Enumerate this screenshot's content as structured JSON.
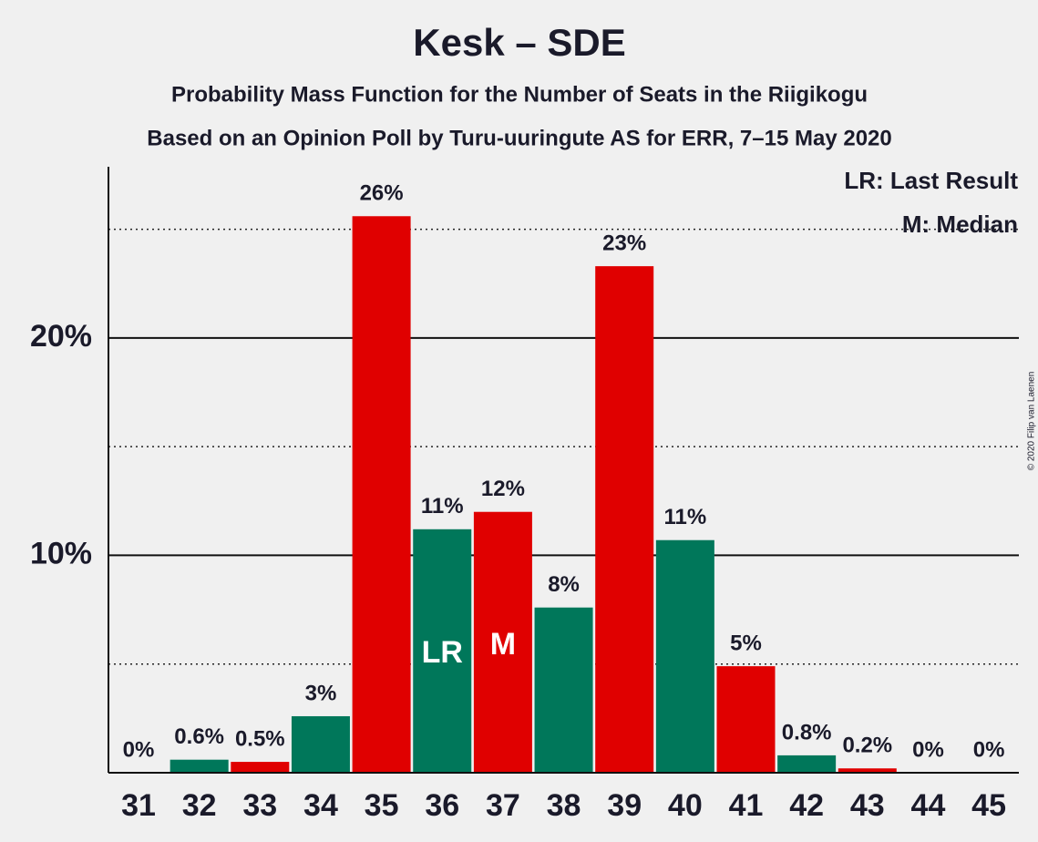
{
  "chart_data": {
    "type": "bar",
    "title": "Kesk – SDE",
    "subtitle": "Probability Mass Function for the Number of Seats in the Riigikogu",
    "subtitle2": "Based on an Opinion Poll by Turu-uuringute AS for ERR, 7–15 May 2020",
    "copyright": "© 2020 Filip van Laenen",
    "legend": [
      "LR: Last Result",
      "M: Median"
    ],
    "categories": [
      "31",
      "32",
      "33",
      "34",
      "35",
      "36",
      "37",
      "38",
      "39",
      "40",
      "41",
      "42",
      "43",
      "44",
      "45"
    ],
    "values": [
      0,
      0.6,
      0.5,
      2.6,
      25.6,
      11.2,
      12,
      7.6,
      23.3,
      10.7,
      4.9,
      0.8,
      0.2,
      0,
      0
    ],
    "value_labels": [
      "0%",
      "0.6%",
      "0.5%",
      "3%",
      "26%",
      "11%",
      "12%",
      "8%",
      "23%",
      "11%",
      "5%",
      "0.8%",
      "0.2%",
      "0%",
      "0%"
    ],
    "colors": [
      "#e00000",
      "#00775a",
      "#e00000",
      "#00775a",
      "#e00000",
      "#00775a",
      "#e00000",
      "#00775a",
      "#e00000",
      "#00775a",
      "#e00000",
      "#00775a",
      "#e00000",
      "#00775a",
      "#e00000"
    ],
    "markers": [
      {
        "category": "36",
        "text": "LR"
      },
      {
        "category": "37",
        "text": "M"
      }
    ],
    "ylim": [
      0,
      28
    ],
    "yticks": [
      {
        "value": 10,
        "label": "10%"
      },
      {
        "value": 20,
        "label": "20%"
      }
    ],
    "minor_yticks": [
      5,
      15,
      25
    ],
    "grid": true
  }
}
